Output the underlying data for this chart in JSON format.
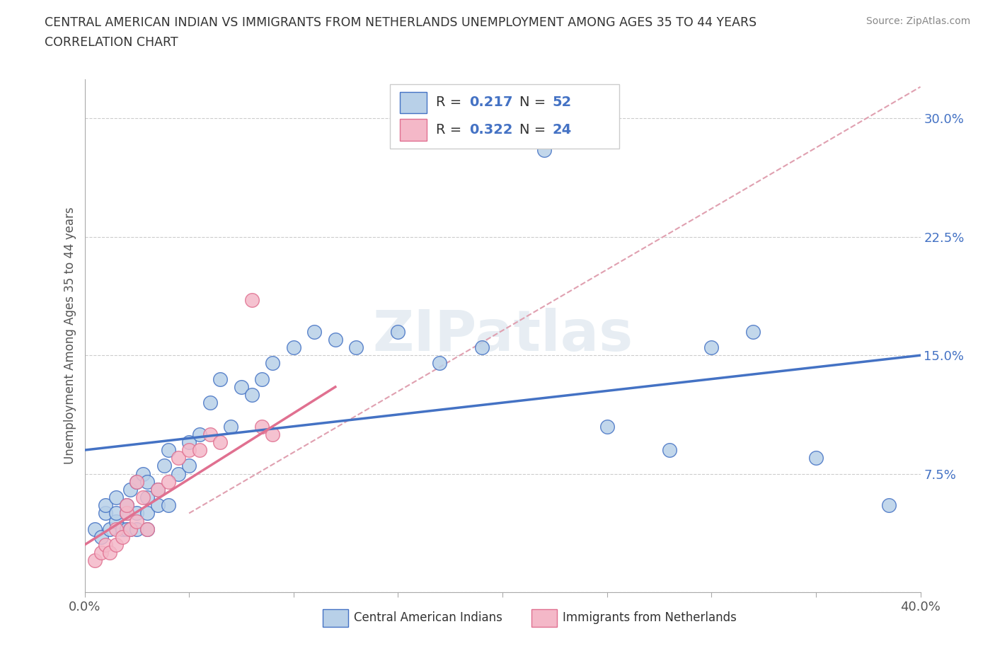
{
  "title_line1": "CENTRAL AMERICAN INDIAN VS IMMIGRANTS FROM NETHERLANDS UNEMPLOYMENT AMONG AGES 35 TO 44 YEARS",
  "title_line2": "CORRELATION CHART",
  "source": "Source: ZipAtlas.com",
  "ylabel": "Unemployment Among Ages 35 to 44 years",
  "xlim": [
    0.0,
    0.4
  ],
  "ylim": [
    0.0,
    0.325
  ],
  "xticks": [
    0.0,
    0.05,
    0.1,
    0.15,
    0.2,
    0.25,
    0.3,
    0.35,
    0.4
  ],
  "ytick_positions": [
    0.0,
    0.075,
    0.15,
    0.225,
    0.3
  ],
  "ytick_labels_right": [
    "",
    "7.5%",
    "15.0%",
    "22.5%",
    "30.0%"
  ],
  "R_blue": 0.217,
  "N_blue": 52,
  "R_pink": 0.322,
  "N_pink": 24,
  "blue_color": "#b8d0e8",
  "pink_color": "#f4b8c8",
  "blue_line_color": "#4472c4",
  "pink_line_color": "#e07090",
  "dash_line_color": "#e0a0b0",
  "watermark_color": "#d0dde8",
  "blue_scatter_x": [
    0.005,
    0.008,
    0.01,
    0.01,
    0.012,
    0.015,
    0.015,
    0.015,
    0.018,
    0.02,
    0.02,
    0.02,
    0.022,
    0.022,
    0.025,
    0.025,
    0.025,
    0.028,
    0.03,
    0.03,
    0.03,
    0.03,
    0.035,
    0.035,
    0.038,
    0.04,
    0.04,
    0.045,
    0.05,
    0.05,
    0.055,
    0.06,
    0.065,
    0.07,
    0.075,
    0.08,
    0.085,
    0.09,
    0.1,
    0.11,
    0.12,
    0.13,
    0.15,
    0.17,
    0.19,
    0.22,
    0.25,
    0.28,
    0.3,
    0.32,
    0.35,
    0.385
  ],
  "blue_scatter_y": [
    0.04,
    0.035,
    0.05,
    0.055,
    0.04,
    0.045,
    0.05,
    0.06,
    0.04,
    0.04,
    0.05,
    0.055,
    0.04,
    0.065,
    0.04,
    0.05,
    0.07,
    0.075,
    0.04,
    0.05,
    0.06,
    0.07,
    0.055,
    0.065,
    0.08,
    0.055,
    0.09,
    0.075,
    0.08,
    0.095,
    0.1,
    0.12,
    0.135,
    0.105,
    0.13,
    0.125,
    0.135,
    0.145,
    0.155,
    0.165,
    0.16,
    0.155,
    0.165,
    0.145,
    0.155,
    0.28,
    0.105,
    0.09,
    0.155,
    0.165,
    0.085,
    0.055
  ],
  "pink_scatter_x": [
    0.005,
    0.008,
    0.01,
    0.012,
    0.015,
    0.015,
    0.018,
    0.02,
    0.02,
    0.022,
    0.025,
    0.025,
    0.028,
    0.03,
    0.035,
    0.04,
    0.045,
    0.05,
    0.055,
    0.06,
    0.065,
    0.08,
    0.085,
    0.09
  ],
  "pink_scatter_y": [
    0.02,
    0.025,
    0.03,
    0.025,
    0.03,
    0.04,
    0.035,
    0.05,
    0.055,
    0.04,
    0.045,
    0.07,
    0.06,
    0.04,
    0.065,
    0.07,
    0.085,
    0.09,
    0.09,
    0.1,
    0.095,
    0.185,
    0.105,
    0.1
  ],
  "blue_trend_x": [
    0.0,
    0.4
  ],
  "blue_trend_y": [
    0.09,
    0.15
  ],
  "pink_trend_x": [
    0.0,
    0.12
  ],
  "pink_trend_y": [
    0.03,
    0.13
  ],
  "dash_line_x": [
    0.05,
    0.4
  ],
  "dash_line_y": [
    0.05,
    0.32
  ]
}
